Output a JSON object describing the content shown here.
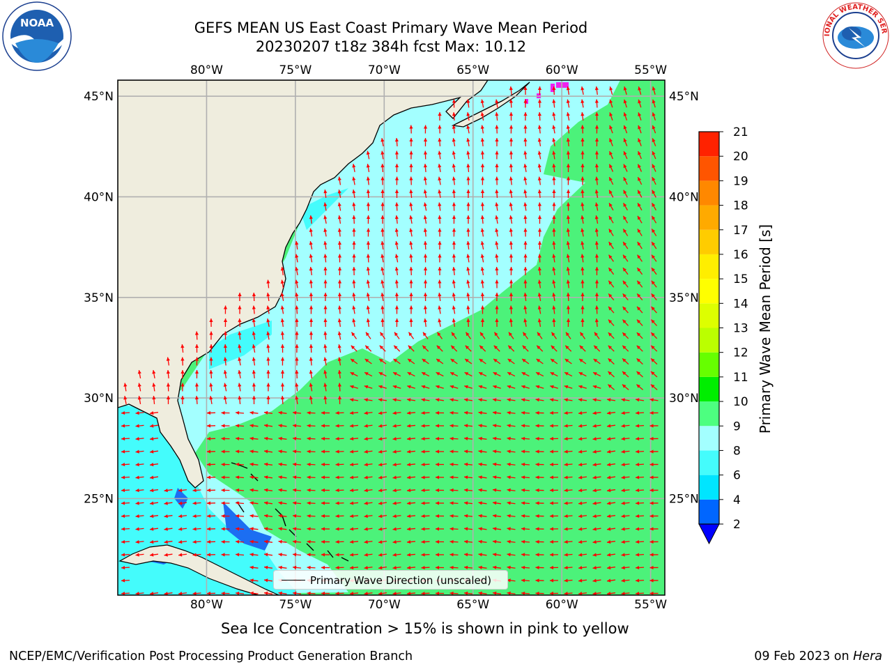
{
  "title": {
    "line1": "GEFS MEAN US East Coast Primary Wave Mean Period",
    "line2": "20230207 t18z 384h fcst   Max: 10.12"
  },
  "logos": {
    "left": {
      "name": "noaa-logo",
      "text": "NOAA"
    },
    "right": {
      "name": "nws-logo",
      "text": "NATIONAL WEATHER SERVICE"
    }
  },
  "axes": {
    "lon_labels": [
      "80°W",
      "75°W",
      "70°W",
      "65°W",
      "60°W",
      "55°W"
    ],
    "lat_labels": [
      "45°N",
      "40°N",
      "35°N",
      "30°N",
      "25°N"
    ],
    "lon_values": [
      -80,
      -75,
      -70,
      -65,
      -60,
      -55
    ],
    "lat_values": [
      45,
      40,
      35,
      30,
      25
    ],
    "lon_range": [
      -85,
      -54.2
    ],
    "lat_range": [
      20.2,
      45.8
    ]
  },
  "colorbar": {
    "label": "Primary Wave Mean Period [s]",
    "ticks": [
      "2",
      "4",
      "6",
      "8",
      "9",
      "10",
      "11",
      "12",
      "13",
      "14",
      "15",
      "16",
      "17",
      "18",
      "19",
      "20",
      "21"
    ],
    "colors": [
      "#0066ff",
      "#00e5ff",
      "#44fcfc",
      "#a3ffff",
      "#4dff80",
      "#00ee00",
      "#66ff00",
      "#bbff00",
      "#ddff00",
      "#ffff00",
      "#ffee00",
      "#ffcc00",
      "#ffaa00",
      "#ff8800",
      "#ff5500",
      "#ff2200",
      "#ff0000"
    ],
    "under_color": "#0000ff"
  },
  "legend": {
    "text": "Primary Wave Direction (unscaled)"
  },
  "map_colors": {
    "land": "#efedde",
    "ocean_green": "#4cf27a",
    "ocean_light_cyan": "#a3ffff",
    "ocean_cyan": "#44fcfc",
    "ocean_blue": "#1c6ef2",
    "arrow": "#ff0000",
    "sea_ice": "#ee22ee"
  },
  "note": "Sea Ice Concentration > 15% is shown in pink to yellow",
  "footer": {
    "left": "NCEP/EMC/Verification Post Processing Product Generation Branch",
    "right_prefix": "09 Feb 2023 on ",
    "right_host": "Hera"
  }
}
